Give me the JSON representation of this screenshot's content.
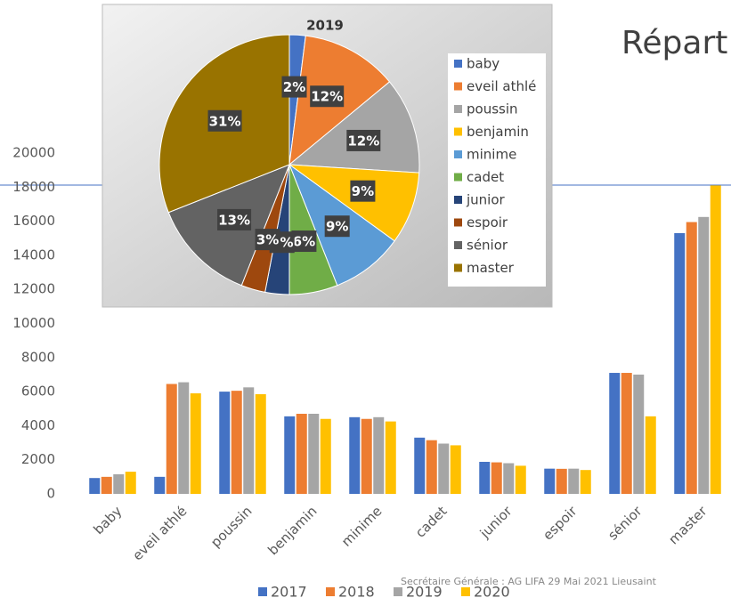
{
  "slide": {
    "title": "Répart",
    "footer": "Secrétaire Générale : AG LIFA 29 Mai 2021 Lieusaint"
  },
  "chart_data": [
    {
      "type": "bar",
      "categories": [
        "baby",
        "eveil athlé",
        "poussin",
        "benjamin",
        "minime",
        "cadet",
        "junior",
        "espoir",
        "sénior",
        "master"
      ],
      "series": [
        {
          "name": "2017",
          "color": "#4472c4",
          "values": [
            930,
            1000,
            6000,
            4550,
            4500,
            3300,
            1880,
            1480,
            7100,
            15300
          ]
        },
        {
          "name": "2018",
          "color": "#ed7d31",
          "values": [
            1000,
            6450,
            6050,
            4700,
            4400,
            3150,
            1850,
            1470,
            7100,
            15950
          ]
        },
        {
          "name": "2019",
          "color": "#a5a5a5",
          "values": [
            1150,
            6550,
            6250,
            4700,
            4500,
            2950,
            1800,
            1480,
            7000,
            16250
          ]
        },
        {
          "name": "2020",
          "color": "#ffc000",
          "values": [
            1300,
            5900,
            5850,
            4400,
            4250,
            2850,
            1650,
            1400,
            4550,
            18100
          ]
        }
      ],
      "ylim": [
        0,
        20000
      ],
      "yticks": [
        0,
        2000,
        4000,
        6000,
        8000,
        10000,
        12000,
        14000,
        16000,
        18000,
        20000
      ],
      "grid": false,
      "legend": "bottom"
    },
    {
      "type": "pie",
      "title": "2019",
      "categories": [
        "baby",
        "eveil athlé",
        "poussin",
        "benjamin",
        "minime",
        "cadet",
        "junior",
        "espoir",
        "sénior",
        "master"
      ],
      "values": [
        2,
        12,
        12,
        9,
        9,
        6,
        3,
        3,
        13,
        31
      ],
      "value_labels": [
        "2%",
        "12%",
        "12%",
        "9%",
        "9%",
        "6%",
        "3%",
        "3%",
        "13%",
        "31%"
      ],
      "colors": [
        "#4472c4",
        "#ed7d31",
        "#a5a5a5",
        "#ffc000",
        "#5b9bd5",
        "#70ad47",
        "#264478",
        "#9e480e",
        "#636363",
        "#997300"
      ],
      "legend": "right"
    }
  ]
}
